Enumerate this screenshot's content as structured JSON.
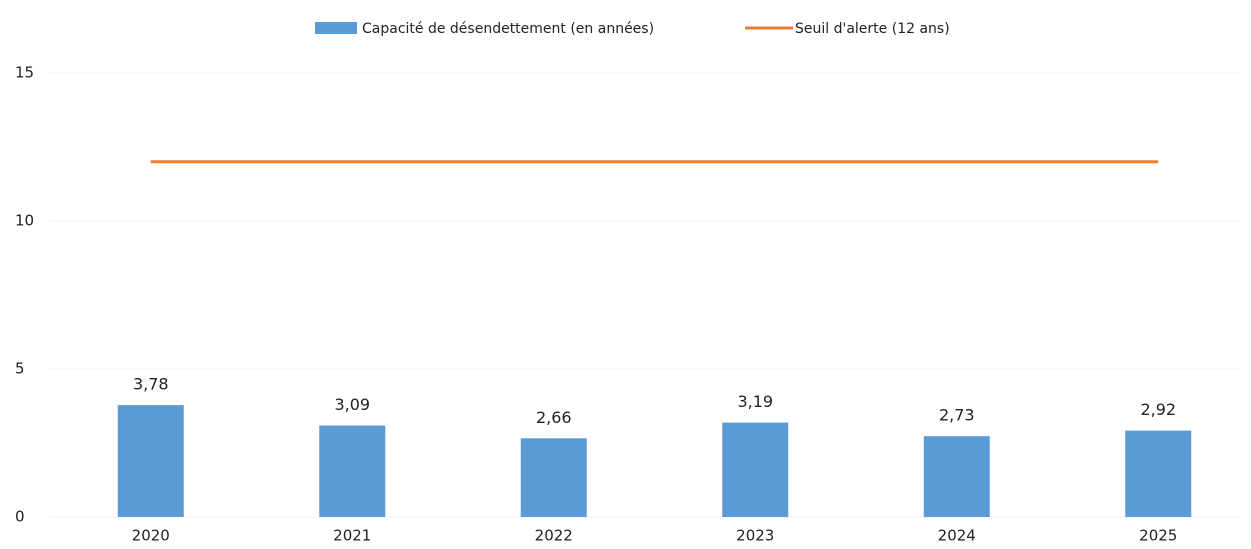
{
  "chart_data": {
    "type": "bar",
    "categories": [
      "2020",
      "2021",
      "2022",
      "2023",
      "2024",
      "2025"
    ],
    "series": [
      {
        "name": "Capacité de désendettement (en années)",
        "type": "bar",
        "color": "#5b9bd5",
        "values": [
          3.78,
          3.09,
          2.66,
          3.19,
          2.73,
          2.92
        ],
        "value_labels": [
          "3,78",
          "3,09",
          "2,66",
          "3,19",
          "2,73",
          "2,92"
        ]
      },
      {
        "name": "Seuil d'alerte (12 ans)",
        "type": "line",
        "color": "#ed7d31",
        "values": [
          12,
          12,
          12,
          12,
          12,
          12
        ]
      }
    ],
    "ylim": [
      0,
      15
    ],
    "yticks": [
      0,
      5,
      10,
      15
    ],
    "grid": true,
    "legend": "top"
  }
}
